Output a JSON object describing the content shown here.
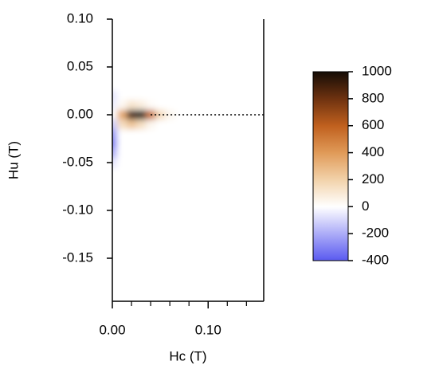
{
  "chart_data": {
    "type": "heatmap",
    "xlabel": "Hc (T)",
    "ylabel": "Hu (T)",
    "xlim": [
      0,
      0.158
    ],
    "ylim": [
      -0.195,
      0.1
    ],
    "xticks": [
      {
        "value": 0,
        "label": "0.00"
      },
      {
        "value": 0.1,
        "label": "0.10"
      }
    ],
    "xminorticks": [
      0.02,
      0.04,
      0.06,
      0.08,
      0.12,
      0.14
    ],
    "yticks": [
      {
        "value": 0.1,
        "label": "0.10"
      },
      {
        "value": 0.05,
        "label": "0.05"
      },
      {
        "value": 0,
        "label": "0.00"
      },
      {
        "value": -0.05,
        "label": "-0.05"
      },
      {
        "value": -0.1,
        "label": "-0.10"
      },
      {
        "value": -0.15,
        "label": "-0.15"
      }
    ],
    "x": [
      0,
      0.01,
      0.02,
      0.03,
      0.04,
      0.05,
      0.06
    ],
    "y": [
      0.02,
      0.01,
      0,
      -0.01,
      -0.02,
      -0.03,
      -0.04,
      -0.05
    ],
    "z": [
      [
        -60,
        0,
        0,
        0,
        0,
        0,
        0
      ],
      [
        -40,
        30,
        120,
        80,
        20,
        0,
        0
      ],
      [
        0,
        350,
        900,
        1000,
        550,
        160,
        40
      ],
      [
        -120,
        150,
        250,
        150,
        40,
        0,
        0
      ],
      [
        -250,
        0,
        0,
        0,
        0,
        0,
        0
      ],
      [
        -300,
        0,
        0,
        0,
        0,
        0,
        0
      ],
      [
        -200,
        0,
        0,
        0,
        0,
        0,
        0
      ],
      [
        -60,
        0,
        0,
        0,
        0,
        0,
        0
      ]
    ],
    "colorscale": [
      {
        "value": -400,
        "color": "#5a5af0"
      },
      {
        "value": 0,
        "color": "#ffffff"
      },
      {
        "value": 200,
        "color": "#f2d2aa"
      },
      {
        "value": 400,
        "color": "#e09a58"
      },
      {
        "value": 600,
        "color": "#c0601e"
      },
      {
        "value": 800,
        "color": "#6e3210"
      },
      {
        "value": 1000,
        "color": "#150c06"
      }
    ],
    "clim": [
      -400,
      1000
    ],
    "cticks": [
      1000,
      800,
      600,
      400,
      200,
      0,
      -200,
      -400
    ]
  }
}
